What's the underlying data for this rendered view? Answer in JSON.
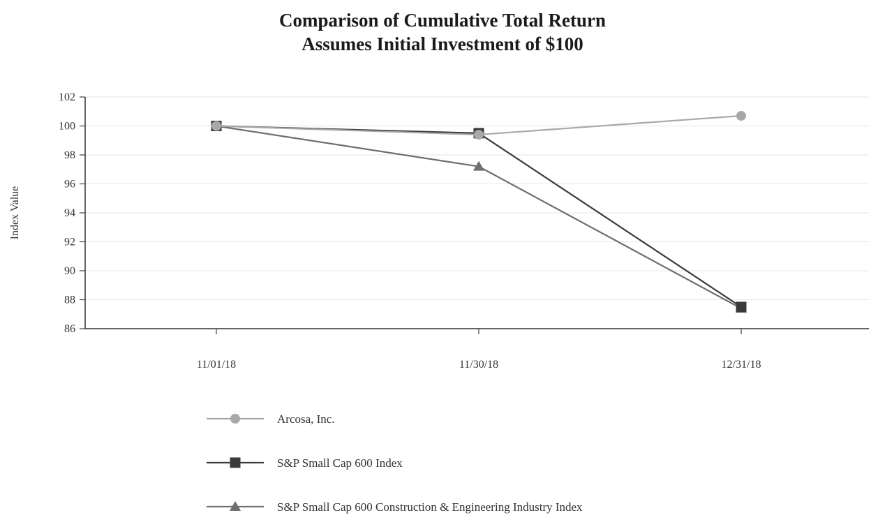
{
  "title_lines": [
    "Comparison of Cumulative Total Return",
    "Assumes Initial Investment of $100"
  ],
  "chart_data": {
    "type": "line",
    "title": "Comparison of Cumulative Total Return",
    "subtitle": "Assumes Initial Investment of $100",
    "categories": [
      "11/01/18",
      "11/30/18",
      "12/31/18"
    ],
    "ylabel": "Index Value",
    "xlabel": "",
    "ylim": [
      86,
      102
    ],
    "yticks": [
      86,
      88,
      90,
      92,
      94,
      96,
      98,
      100,
      102
    ],
    "grid": true,
    "legend_placement": "bottom",
    "series": [
      {
        "name": "Arcosa, Inc.",
        "values": [
          100,
          99.4,
          100.7
        ],
        "color": "#a8a8a8",
        "marker": "circle"
      },
      {
        "name": "S&P Small Cap 600 Index",
        "values": [
          100,
          99.5,
          87.5
        ],
        "color": "#3a3a3a",
        "marker": "square"
      },
      {
        "name": "S&P Small Cap 600 Construction & Engineering Industry Index",
        "values": [
          100,
          97.2,
          87.4
        ],
        "color": "#6e6e6e",
        "marker": "triangle"
      }
    ]
  }
}
